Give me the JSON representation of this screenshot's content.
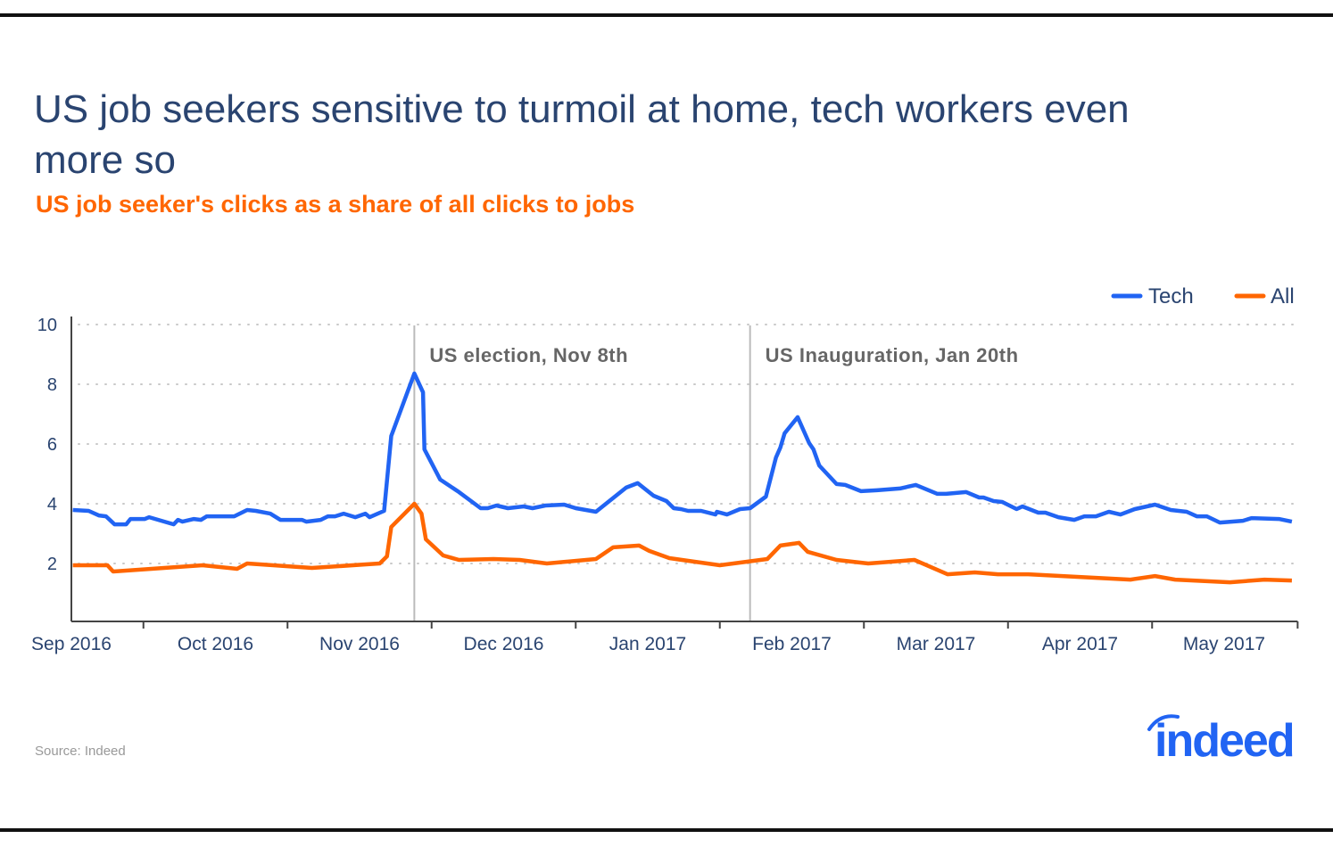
{
  "header": {
    "title": "US job seekers sensitive to turmoil at home, tech workers even more so",
    "subtitle": "US job seeker's clicks as a share of all clicks to jobs"
  },
  "footer": {
    "source": "Source: Indeed",
    "logo_text": "indeed"
  },
  "colors": {
    "tech": "#2164f3",
    "all": "#ff6600",
    "title": "#2a4470"
  },
  "chart_data": {
    "type": "line",
    "title": "US job seeker's clicks as a share of all clicks to jobs",
    "xlabel": "",
    "ylabel": "",
    "x_unit": "months since Sep 2016",
    "xlim": [
      0,
      8.51
    ],
    "ylim": [
      0,
      10
    ],
    "y_ticks": [
      2,
      4,
      6,
      8,
      10
    ],
    "x_tick_labels": [
      "Sep 2016",
      "Oct 2016",
      "Nov 2016",
      "Dec 2016",
      "Jan 2017",
      "Feb 2017",
      "Mar 2017",
      "Apr 2017",
      "May 2017"
    ],
    "grid": "horizontal dotted",
    "legend": {
      "placement": "top-right",
      "entries": [
        "Tech",
        "All"
      ]
    },
    "annotations": [
      {
        "label": "US election, Nov 8th",
        "x": 2.38
      },
      {
        "label": "US Inauguration, Jan 20th",
        "x": 4.71
      }
    ],
    "series": [
      {
        "name": "Tech",
        "color": "#2164f3",
        "points": [
          [
            0.01,
            3.79
          ],
          [
            0.12,
            3.76
          ],
          [
            0.19,
            3.61
          ],
          [
            0.24,
            3.58
          ],
          [
            0.3,
            3.31
          ],
          [
            0.38,
            3.31
          ],
          [
            0.41,
            3.49
          ],
          [
            0.51,
            3.49
          ],
          [
            0.54,
            3.55
          ],
          [
            0.71,
            3.31
          ],
          [
            0.74,
            3.46
          ],
          [
            0.77,
            3.4
          ],
          [
            0.85,
            3.49
          ],
          [
            0.9,
            3.46
          ],
          [
            0.94,
            3.58
          ],
          [
            1.13,
            3.58
          ],
          [
            1.22,
            3.79
          ],
          [
            1.28,
            3.76
          ],
          [
            1.38,
            3.67
          ],
          [
            1.45,
            3.46
          ],
          [
            1.6,
            3.46
          ],
          [
            1.63,
            3.4
          ],
          [
            1.73,
            3.46
          ],
          [
            1.78,
            3.58
          ],
          [
            1.83,
            3.58
          ],
          [
            1.89,
            3.67
          ],
          [
            1.97,
            3.55
          ],
          [
            2.04,
            3.67
          ],
          [
            2.07,
            3.55
          ],
          [
            2.17,
            3.76
          ],
          [
            2.22,
            6.27
          ],
          [
            2.38,
            8.36
          ],
          [
            2.44,
            7.73
          ],
          [
            2.45,
            5.82
          ],
          [
            2.56,
            4.81
          ],
          [
            2.69,
            4.39
          ],
          [
            2.84,
            3.85
          ],
          [
            2.89,
            3.85
          ],
          [
            2.95,
            3.94
          ],
          [
            3.03,
            3.85
          ],
          [
            3.14,
            3.91
          ],
          [
            3.2,
            3.85
          ],
          [
            3.29,
            3.94
          ],
          [
            3.42,
            3.97
          ],
          [
            3.5,
            3.85
          ],
          [
            3.64,
            3.73
          ],
          [
            3.85,
            4.54
          ],
          [
            3.93,
            4.69
          ],
          [
            4.04,
            4.27
          ],
          [
            4.13,
            4.09
          ],
          [
            4.18,
            3.85
          ],
          [
            4.23,
            3.82
          ],
          [
            4.28,
            3.76
          ],
          [
            4.37,
            3.76
          ],
          [
            4.47,
            3.64
          ],
          [
            4.48,
            3.73
          ],
          [
            4.55,
            3.64
          ],
          [
            4.64,
            3.82
          ],
          [
            4.71,
            3.85
          ],
          [
            4.82,
            4.24
          ],
          [
            4.89,
            5.55
          ],
          [
            4.92,
            5.88
          ],
          [
            4.95,
            6.36
          ],
          [
            5.04,
            6.9
          ],
          [
            5.12,
            6.03
          ],
          [
            5.15,
            5.82
          ],
          [
            5.19,
            5.28
          ],
          [
            5.31,
            4.66
          ],
          [
            5.37,
            4.63
          ],
          [
            5.48,
            4.42
          ],
          [
            5.59,
            4.45
          ],
          [
            5.75,
            4.51
          ],
          [
            5.86,
            4.63
          ],
          [
            6.01,
            4.33
          ],
          [
            6.07,
            4.33
          ],
          [
            6.21,
            4.39
          ],
          [
            6.3,
            4.21
          ],
          [
            6.33,
            4.21
          ],
          [
            6.4,
            4.09
          ],
          [
            6.46,
            4.06
          ],
          [
            6.56,
            3.82
          ],
          [
            6.6,
            3.91
          ],
          [
            6.71,
            3.7
          ],
          [
            6.76,
            3.7
          ],
          [
            6.85,
            3.55
          ],
          [
            6.96,
            3.46
          ],
          [
            7.03,
            3.58
          ],
          [
            7.11,
            3.58
          ],
          [
            7.2,
            3.73
          ],
          [
            7.28,
            3.64
          ],
          [
            7.38,
            3.82
          ],
          [
            7.52,
            3.97
          ],
          [
            7.63,
            3.79
          ],
          [
            7.74,
            3.73
          ],
          [
            7.81,
            3.58
          ],
          [
            7.88,
            3.58
          ],
          [
            7.97,
            3.37
          ],
          [
            8.13,
            3.43
          ],
          [
            8.19,
            3.52
          ],
          [
            8.38,
            3.49
          ],
          [
            8.47,
            3.4
          ]
        ]
      },
      {
        "name": "All",
        "color": "#ff6600",
        "points": [
          [
            0.01,
            1.94
          ],
          [
            0.25,
            1.94
          ],
          [
            0.29,
            1.73
          ],
          [
            0.91,
            1.94
          ],
          [
            1.15,
            1.82
          ],
          [
            1.22,
            2.0
          ],
          [
            1.67,
            1.85
          ],
          [
            2.14,
            2.0
          ],
          [
            2.19,
            2.24
          ],
          [
            2.22,
            3.22
          ],
          [
            2.38,
            4.0
          ],
          [
            2.43,
            3.67
          ],
          [
            2.46,
            2.81
          ],
          [
            2.58,
            2.27
          ],
          [
            2.69,
            2.12
          ],
          [
            2.93,
            2.15
          ],
          [
            3.11,
            2.12
          ],
          [
            3.3,
            2.0
          ],
          [
            3.64,
            2.15
          ],
          [
            3.76,
            2.54
          ],
          [
            3.94,
            2.6
          ],
          [
            4.01,
            2.42
          ],
          [
            4.15,
            2.18
          ],
          [
            4.5,
            1.94
          ],
          [
            4.83,
            2.15
          ],
          [
            4.92,
            2.6
          ],
          [
            5.05,
            2.69
          ],
          [
            5.11,
            2.39
          ],
          [
            5.31,
            2.12
          ],
          [
            5.53,
            2.0
          ],
          [
            5.85,
            2.12
          ],
          [
            6.08,
            1.64
          ],
          [
            6.27,
            1.7
          ],
          [
            6.43,
            1.64
          ],
          [
            6.64,
            1.64
          ],
          [
            7.35,
            1.46
          ],
          [
            7.52,
            1.58
          ],
          [
            7.66,
            1.46
          ],
          [
            8.04,
            1.37
          ],
          [
            8.28,
            1.46
          ],
          [
            8.47,
            1.43
          ]
        ]
      }
    ]
  }
}
